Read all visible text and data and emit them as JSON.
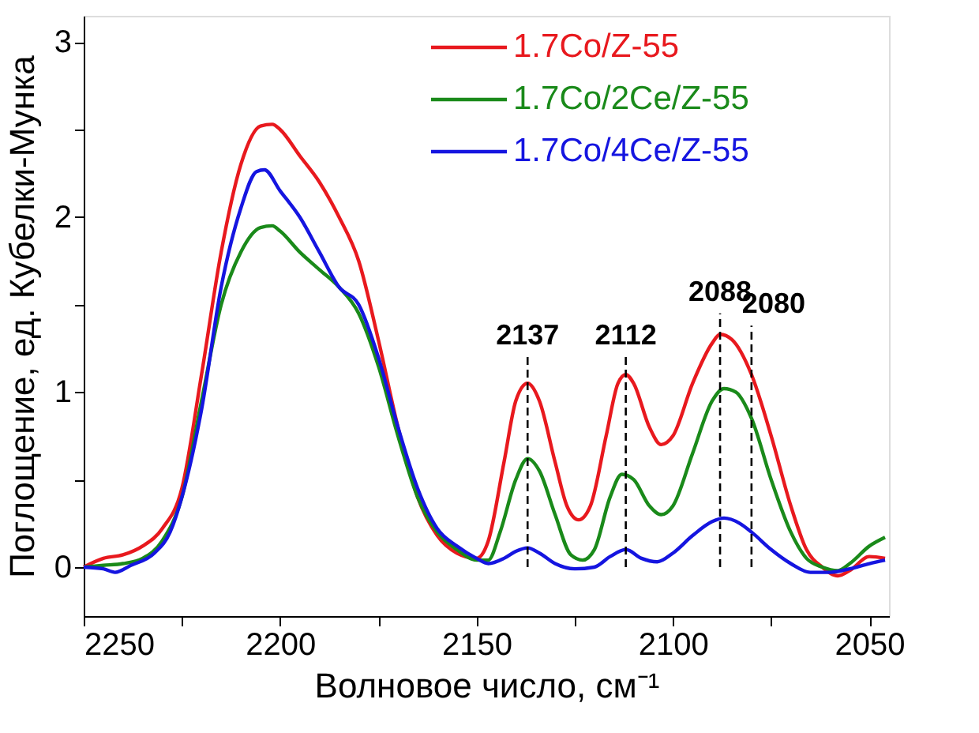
{
  "chart_data": {
    "type": "line",
    "xlabel": "Волновое число, см⁻¹",
    "ylabel": "Поглощение, ед. Кубелки-Мунка",
    "xlim": [
      2250,
      2045
    ],
    "ylim": [
      -0.28,
      3.15
    ],
    "xticks": [
      2250,
      {
        "value": 2225,
        "label": null
      },
      2200,
      {
        "value": 2175,
        "label": null
      },
      2150,
      {
        "value": 2125,
        "label": null
      },
      2100,
      {
        "value": 2075,
        "label": null
      },
      2050
    ],
    "yticks": [
      0,
      {
        "value": 0.5,
        "label": null
      },
      1,
      {
        "value": 1.5,
        "label": null
      },
      2,
      {
        "value": 2.5,
        "label": null
      },
      3
    ],
    "grid": false,
    "legend": "top right",
    "line_style": "solid",
    "marker": "none",
    "series": [
      {
        "name": "1.7Co/Z-55",
        "color": "#e8191e",
        "x": [
          2250,
          2245,
          2240,
          2235,
          2230,
          2225,
          2220,
          2215,
          2210,
          2205,
          2202,
          2200,
          2195,
          2190,
          2185,
          2180,
          2175,
          2170,
          2165,
          2160,
          2155,
          2150,
          2147,
          2143,
          2140,
          2137,
          2134,
          2130,
          2127,
          2124,
          2121,
          2117,
          2114,
          2112,
          2110,
          2106,
          2103,
          2100,
          2095,
          2090,
          2088,
          2085,
          2080,
          2075,
          2070,
          2066,
          2062,
          2058,
          2055,
          2050,
          2046
        ],
        "values": [
          0.0,
          0.05,
          0.07,
          0.12,
          0.22,
          0.45,
          1.1,
          1.8,
          2.3,
          2.52,
          2.53,
          2.5,
          2.35,
          2.2,
          2.0,
          1.75,
          1.3,
          0.8,
          0.4,
          0.18,
          0.08,
          0.05,
          0.15,
          0.6,
          0.95,
          1.05,
          0.95,
          0.6,
          0.35,
          0.27,
          0.35,
          0.75,
          1.05,
          1.1,
          1.05,
          0.8,
          0.7,
          0.75,
          1.05,
          1.28,
          1.33,
          1.3,
          1.1,
          0.75,
          0.35,
          0.1,
          0.0,
          -0.05,
          -0.02,
          0.06,
          0.05
        ]
      },
      {
        "name": "1.7Co/2Ce/Z-55",
        "color": "#1a8a1a",
        "x": [
          2250,
          2245,
          2240,
          2235,
          2230,
          2225,
          2220,
          2215,
          2210,
          2205,
          2202,
          2200,
          2195,
          2190,
          2185,
          2180,
          2175,
          2170,
          2165,
          2160,
          2155,
          2150,
          2147,
          2144,
          2140,
          2137,
          2134,
          2130,
          2126,
          2123,
          2120,
          2116,
          2113,
          2110,
          2106,
          2103,
          2100,
          2095,
          2090,
          2087,
          2084,
          2080,
          2075,
          2070,
          2066,
          2062,
          2058,
          2055,
          2050,
          2046
        ],
        "values": [
          0.0,
          0.01,
          0.02,
          0.05,
          0.15,
          0.4,
          0.95,
          1.5,
          1.8,
          1.94,
          1.95,
          1.92,
          1.8,
          1.7,
          1.6,
          1.45,
          1.15,
          0.75,
          0.4,
          0.2,
          0.1,
          0.04,
          0.04,
          0.2,
          0.5,
          0.62,
          0.55,
          0.3,
          0.07,
          0.04,
          0.1,
          0.4,
          0.53,
          0.5,
          0.35,
          0.3,
          0.35,
          0.65,
          0.95,
          1.02,
          1.0,
          0.85,
          0.5,
          0.2,
          0.05,
          0.0,
          -0.02,
          0.02,
          0.12,
          0.17
        ]
      },
      {
        "name": "1.7Co/4Ce/Z-55",
        "color": "#1515e0",
        "x": [
          2250,
          2245,
          2242,
          2238,
          2232,
          2228,
          2225,
          2220,
          2215,
          2210,
          2206,
          2204,
          2200,
          2195,
          2190,
          2185,
          2180,
          2175,
          2170,
          2165,
          2160,
          2155,
          2150,
          2147,
          2143,
          2140,
          2137,
          2134,
          2130,
          2125,
          2120,
          2116,
          2112,
          2108,
          2104,
          2100,
          2095,
          2090,
          2087,
          2083,
          2080,
          2075,
          2070,
          2065,
          2060,
          2055,
          2050,
          2046
        ],
        "values": [
          0.0,
          -0.01,
          -0.03,
          0.01,
          0.08,
          0.2,
          0.4,
          0.9,
          1.6,
          2.05,
          2.26,
          2.27,
          2.15,
          2.0,
          1.8,
          1.6,
          1.5,
          1.2,
          0.8,
          0.45,
          0.22,
          0.12,
          0.05,
          0.02,
          0.05,
          0.09,
          0.11,
          0.08,
          0.02,
          -0.01,
          0.0,
          0.06,
          0.1,
          0.05,
          0.03,
          0.08,
          0.18,
          0.26,
          0.28,
          0.25,
          0.2,
          0.1,
          0.02,
          -0.03,
          -0.03,
          -0.01,
          0.02,
          0.04
        ]
      }
    ],
    "ref_lines": [
      {
        "axis": "x",
        "value": 2137,
        "label": "2137",
        "line_style": "dashed",
        "color": "#000000"
      },
      {
        "axis": "x",
        "value": 2112,
        "label": "2112",
        "line_style": "dashed",
        "color": "#000000"
      },
      {
        "axis": "x",
        "value": 2088,
        "label": "2088",
        "line_style": "dashed",
        "color": "#000000"
      },
      {
        "axis": "x",
        "value": 2080,
        "label": "2080",
        "line_style": "dashed",
        "color": "#000000"
      }
    ]
  }
}
